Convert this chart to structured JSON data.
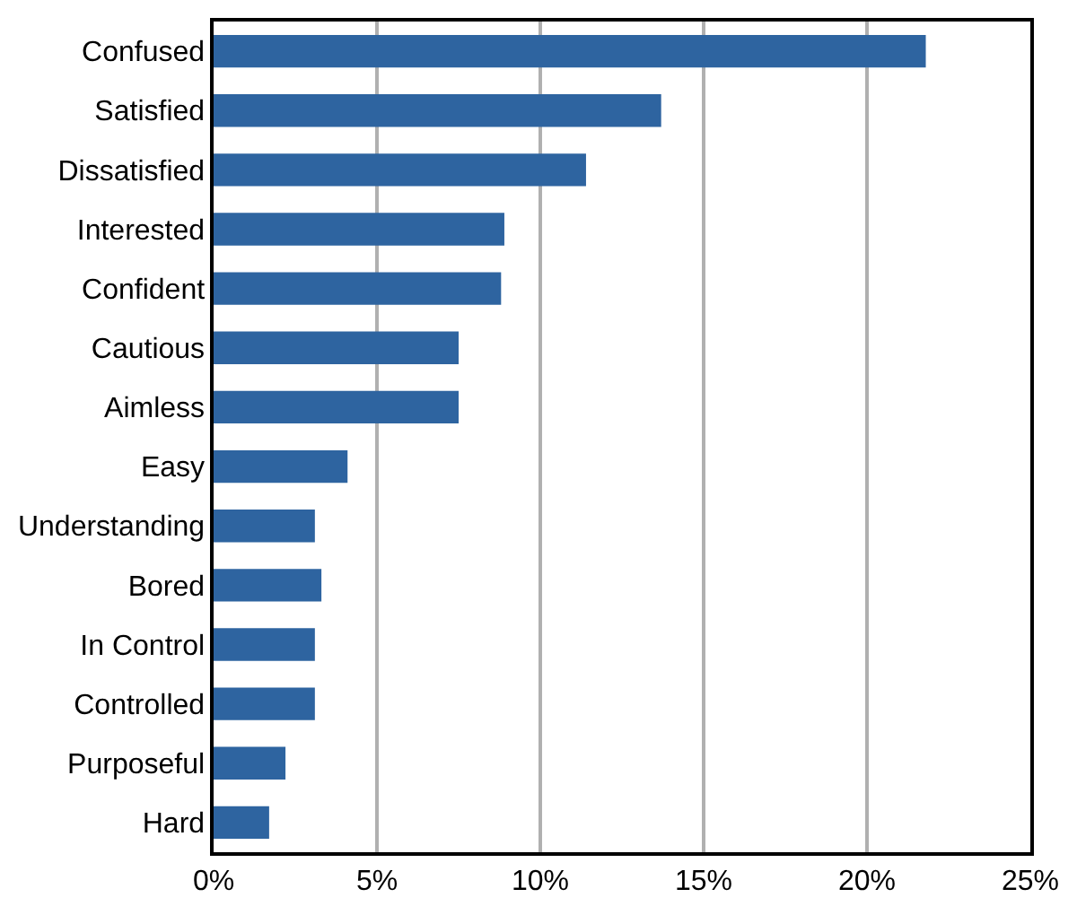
{
  "chart_data": {
    "type": "bar",
    "orientation": "horizontal",
    "categories": [
      "Confused",
      "Satisfied",
      "Dissatisfied",
      "Interested",
      "Confident",
      "Cautious",
      "Aimless",
      "Easy",
      "Understanding",
      "Bored",
      "In Control",
      "Controlled",
      "Purposeful",
      "Hard"
    ],
    "values": [
      21.8,
      13.7,
      11.4,
      8.9,
      8.8,
      7.5,
      7.5,
      4.1,
      3.1,
      3.3,
      3.1,
      3.1,
      2.2,
      1.7
    ],
    "color": "#2e64a0",
    "xlim": [
      0,
      25
    ],
    "xticks": [
      {
        "value": 0,
        "label": "0%"
      },
      {
        "value": 5,
        "label": "5%"
      },
      {
        "value": 10,
        "label": "10%"
      },
      {
        "value": 15,
        "label": "15%"
      },
      {
        "value": 20,
        "label": "20%"
      },
      {
        "value": 25,
        "label": "25%"
      }
    ],
    "grid": "x",
    "legend": false
  }
}
